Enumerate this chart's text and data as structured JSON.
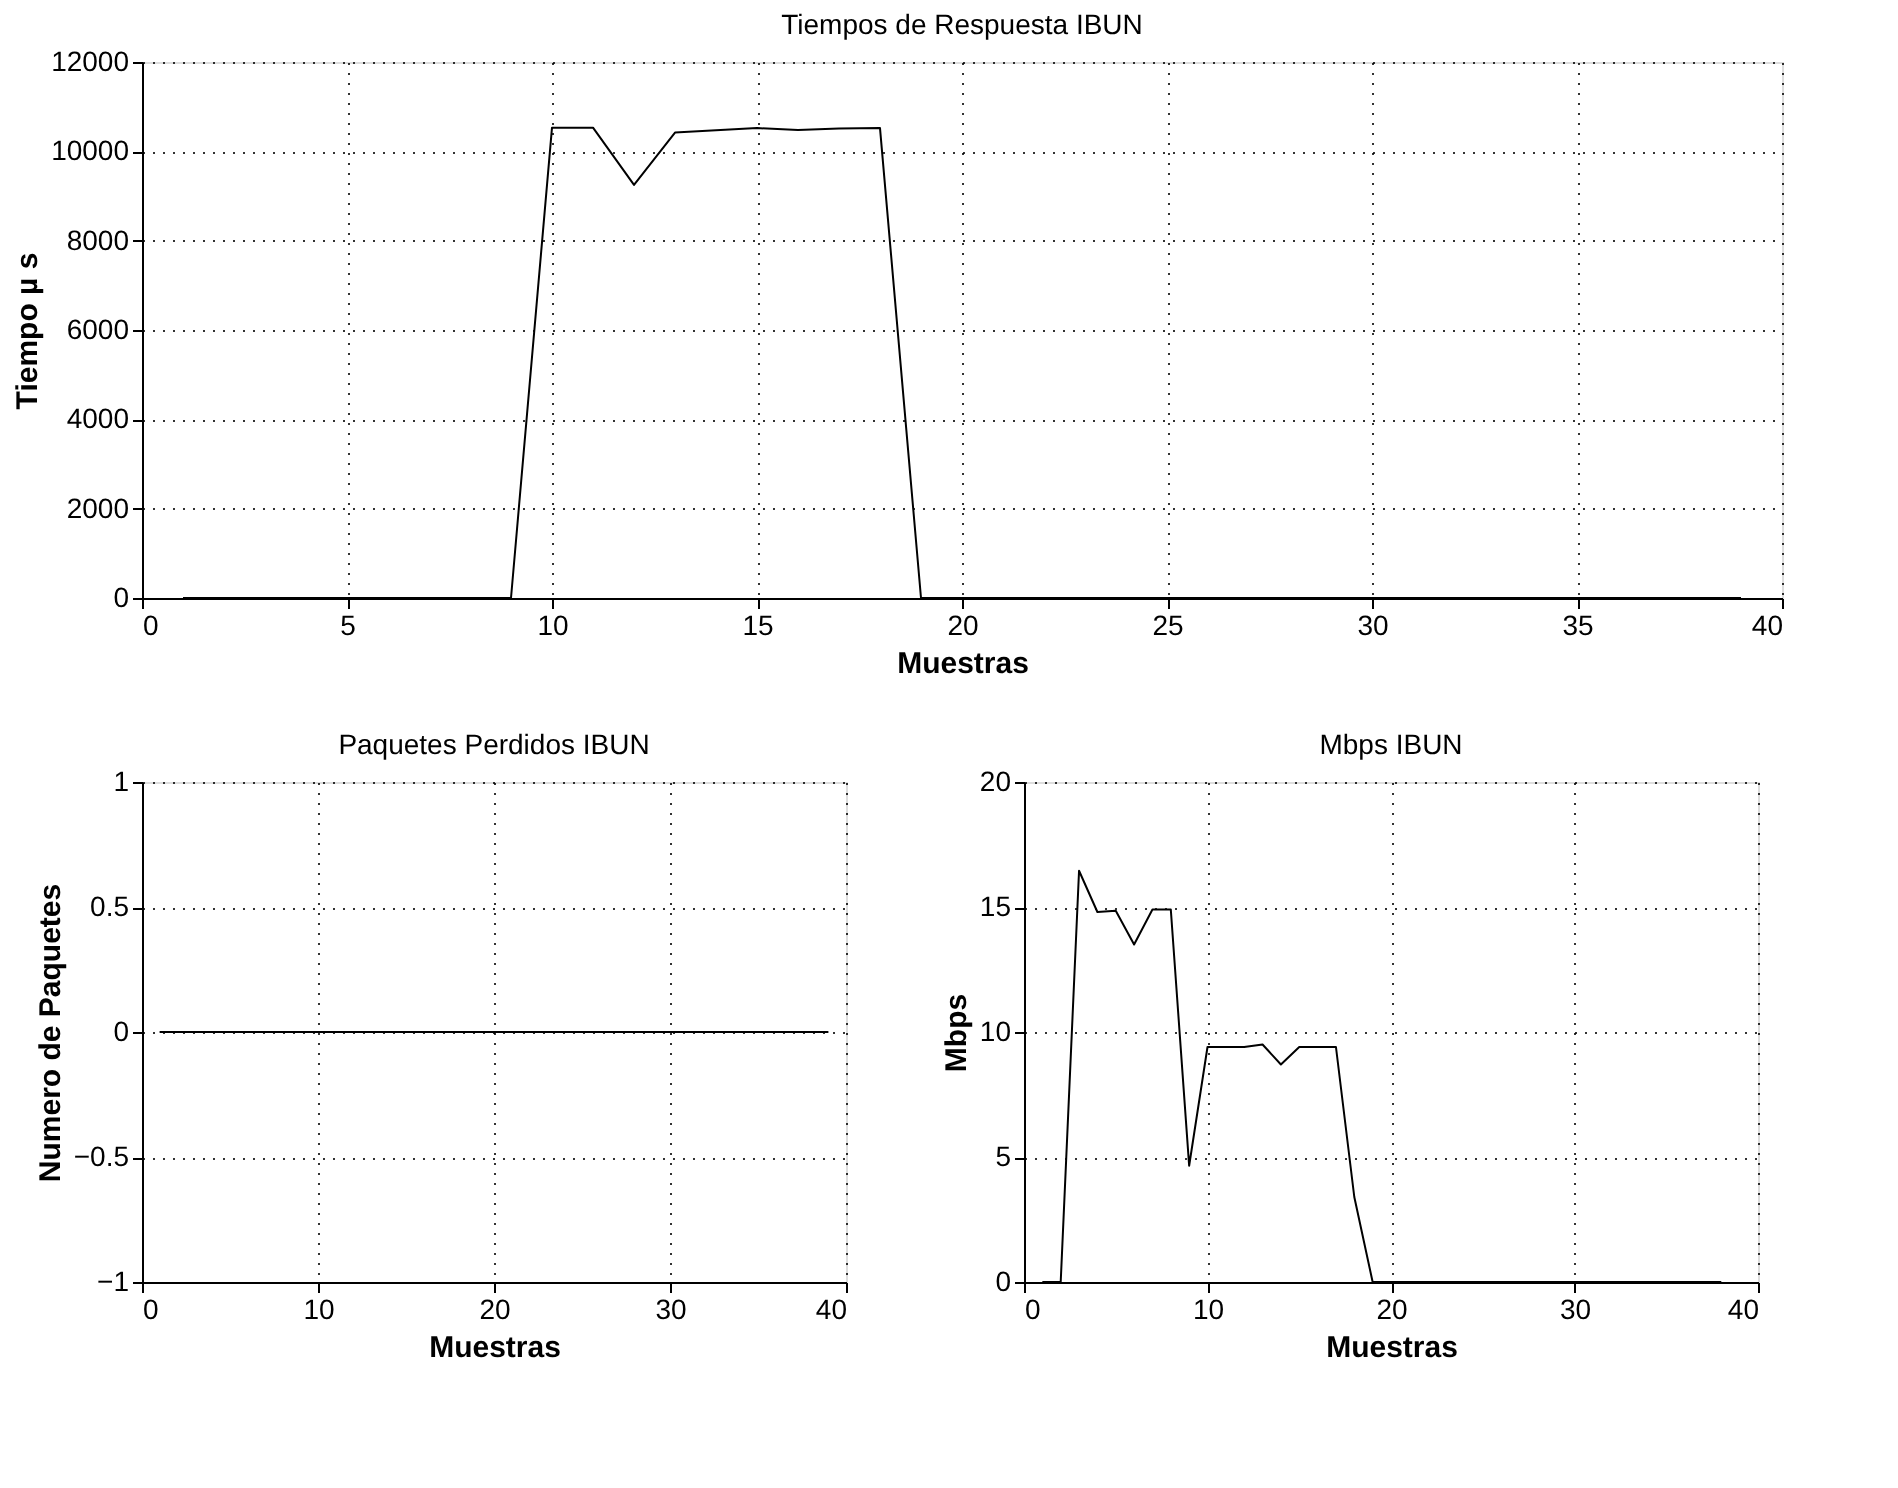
{
  "chart_data": [
    {
      "type": "line",
      "title": "Tiempos de Respuesta IBUN",
      "xlabel": "Muestras",
      "ylabel": "Tiempo µ s",
      "grid": true,
      "x": [
        1,
        2,
        3,
        4,
        5,
        6,
        7,
        8,
        9,
        10,
        11,
        12,
        13,
        14,
        15,
        16,
        17,
        18,
        19,
        20,
        21,
        22,
        23,
        24,
        25,
        26,
        27,
        28,
        29,
        30,
        31,
        32,
        33,
        34,
        35,
        36,
        37,
        38,
        39
      ],
      "series": [
        {
          "color": "#000000",
          "values": [
            0,
            0,
            0,
            0,
            0,
            0,
            0,
            0,
            0,
            10530,
            10530,
            9250,
            10420,
            10470,
            10520,
            10480,
            10510,
            10520,
            0,
            0,
            0,
            0,
            0,
            0,
            0,
            0,
            0,
            0,
            0,
            0,
            0,
            0,
            0,
            0,
            0,
            0,
            0,
            0,
            0
          ]
        }
      ],
      "xlim": [
        0,
        40
      ],
      "xticks": [
        0,
        5,
        10,
        15,
        20,
        25,
        30,
        35,
        40
      ],
      "ylim": [
        0,
        12000
      ],
      "yticks": [
        0,
        2000,
        4000,
        6000,
        8000,
        10000,
        12000
      ]
    },
    {
      "type": "line",
      "title": "Paquetes Perdidos IBUN",
      "xlabel": "Muestras",
      "ylabel": "Numero de Paquetes",
      "grid": true,
      "x": [
        1,
        2,
        3,
        4,
        5,
        6,
        7,
        8,
        9,
        10,
        11,
        12,
        13,
        14,
        15,
        16,
        17,
        18,
        19,
        20,
        21,
        22,
        23,
        24,
        25,
        26,
        27,
        28,
        29,
        30,
        31,
        32,
        33,
        34,
        35,
        36,
        37,
        38,
        39
      ],
      "series": [
        {
          "color": "#000000",
          "values": [
            0,
            0,
            0,
            0,
            0,
            0,
            0,
            0,
            0,
            0,
            0,
            0,
            0,
            0,
            0,
            0,
            0,
            0,
            0,
            0,
            0,
            0,
            0,
            0,
            0,
            0,
            0,
            0,
            0,
            0,
            0,
            0,
            0,
            0,
            0,
            0,
            0,
            0,
            0
          ]
        }
      ],
      "xlim": [
        0,
        40
      ],
      "xticks": [
        0,
        10,
        20,
        30,
        40
      ],
      "ylim": [
        -1,
        1
      ],
      "yticks": [
        -1,
        -0.5,
        0,
        0.5,
        1
      ]
    },
    {
      "type": "line",
      "title": "Mbps IBUN",
      "xlabel": "Muestras",
      "ylabel": "Mbps",
      "grid": true,
      "x": [
        1,
        2,
        3,
        4,
        5,
        6,
        7,
        8,
        9,
        10,
        11,
        12,
        13,
        14,
        15,
        16,
        17,
        18,
        19,
        20,
        21,
        22,
        23,
        24,
        25,
        26,
        27,
        28,
        29,
        30,
        31,
        32,
        33,
        34,
        35,
        36,
        37,
        38
      ],
      "series": [
        {
          "color": "#000000",
          "values": [
            0,
            0,
            16.45,
            14.8,
            14.85,
            13.5,
            14.9,
            14.9,
            4.65,
            9.4,
            9.4,
            9.4,
            9.5,
            8.7,
            9.4,
            9.4,
            9.4,
            3.4,
            0,
            0,
            0,
            0,
            0,
            0,
            0,
            0,
            0,
            0,
            0,
            0,
            0,
            0,
            0,
            0,
            0,
            0,
            0,
            0
          ]
        }
      ],
      "xlim": [
        0,
        40
      ],
      "xticks": [
        0,
        10,
        20,
        30,
        40
      ],
      "ylim": [
        0,
        20
      ],
      "yticks": [
        0,
        5,
        10,
        15,
        20
      ]
    }
  ]
}
